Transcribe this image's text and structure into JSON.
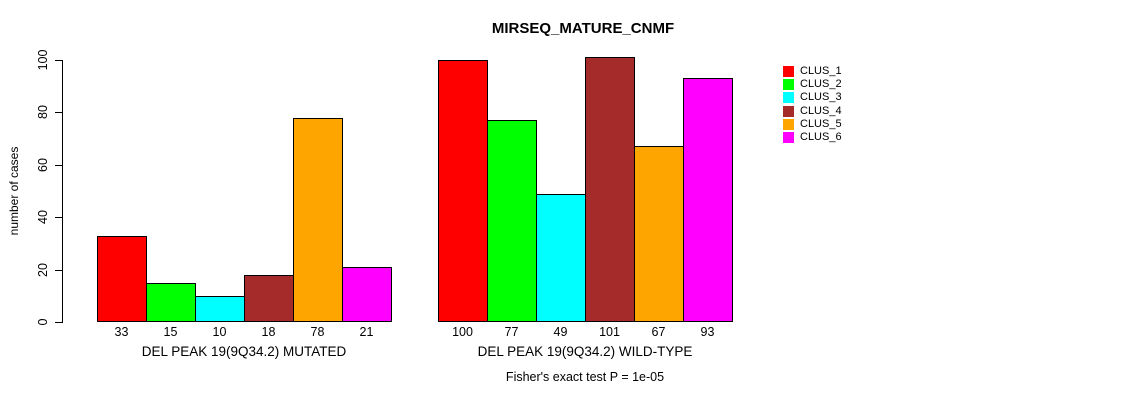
{
  "title": "MIRSEQ_MATURE_CNMF",
  "chart_data": {
    "type": "bar",
    "title": "MIRSEQ_MATURE_CNMF",
    "ylabel": "number of cases",
    "ylim": [
      0,
      100
    ],
    "yticks": [
      0,
      20,
      40,
      60,
      80,
      100
    ],
    "grid": false,
    "legend_position": "right",
    "series": [
      {
        "name": "CLUS_1",
        "color": "#FF0000",
        "values": [
          33,
          100
        ]
      },
      {
        "name": "CLUS_2",
        "color": "#00FF00",
        "values": [
          15,
          77
        ]
      },
      {
        "name": "CLUS_3",
        "color": "#00FFFF",
        "values": [
          10,
          49
        ]
      },
      {
        "name": "CLUS_4",
        "color": "#A52A2A",
        "values": [
          18,
          101
        ]
      },
      {
        "name": "CLUS_5",
        "color": "#FFA500",
        "values": [
          78,
          67
        ]
      },
      {
        "name": "CLUS_6",
        "color": "#FF00FF",
        "values": [
          21,
          93
        ]
      }
    ],
    "groups": [
      {
        "label": "DEL PEAK 19(9Q34.2) MUTATED",
        "values": [
          33,
          15,
          10,
          18,
          78,
          21
        ]
      },
      {
        "label": "DEL PEAK 19(9Q34.2) WILD-TYPE",
        "values": [
          100,
          77,
          49,
          101,
          67,
          93
        ]
      }
    ],
    "footnote": "Fisher's exact test P = 1e-05"
  }
}
